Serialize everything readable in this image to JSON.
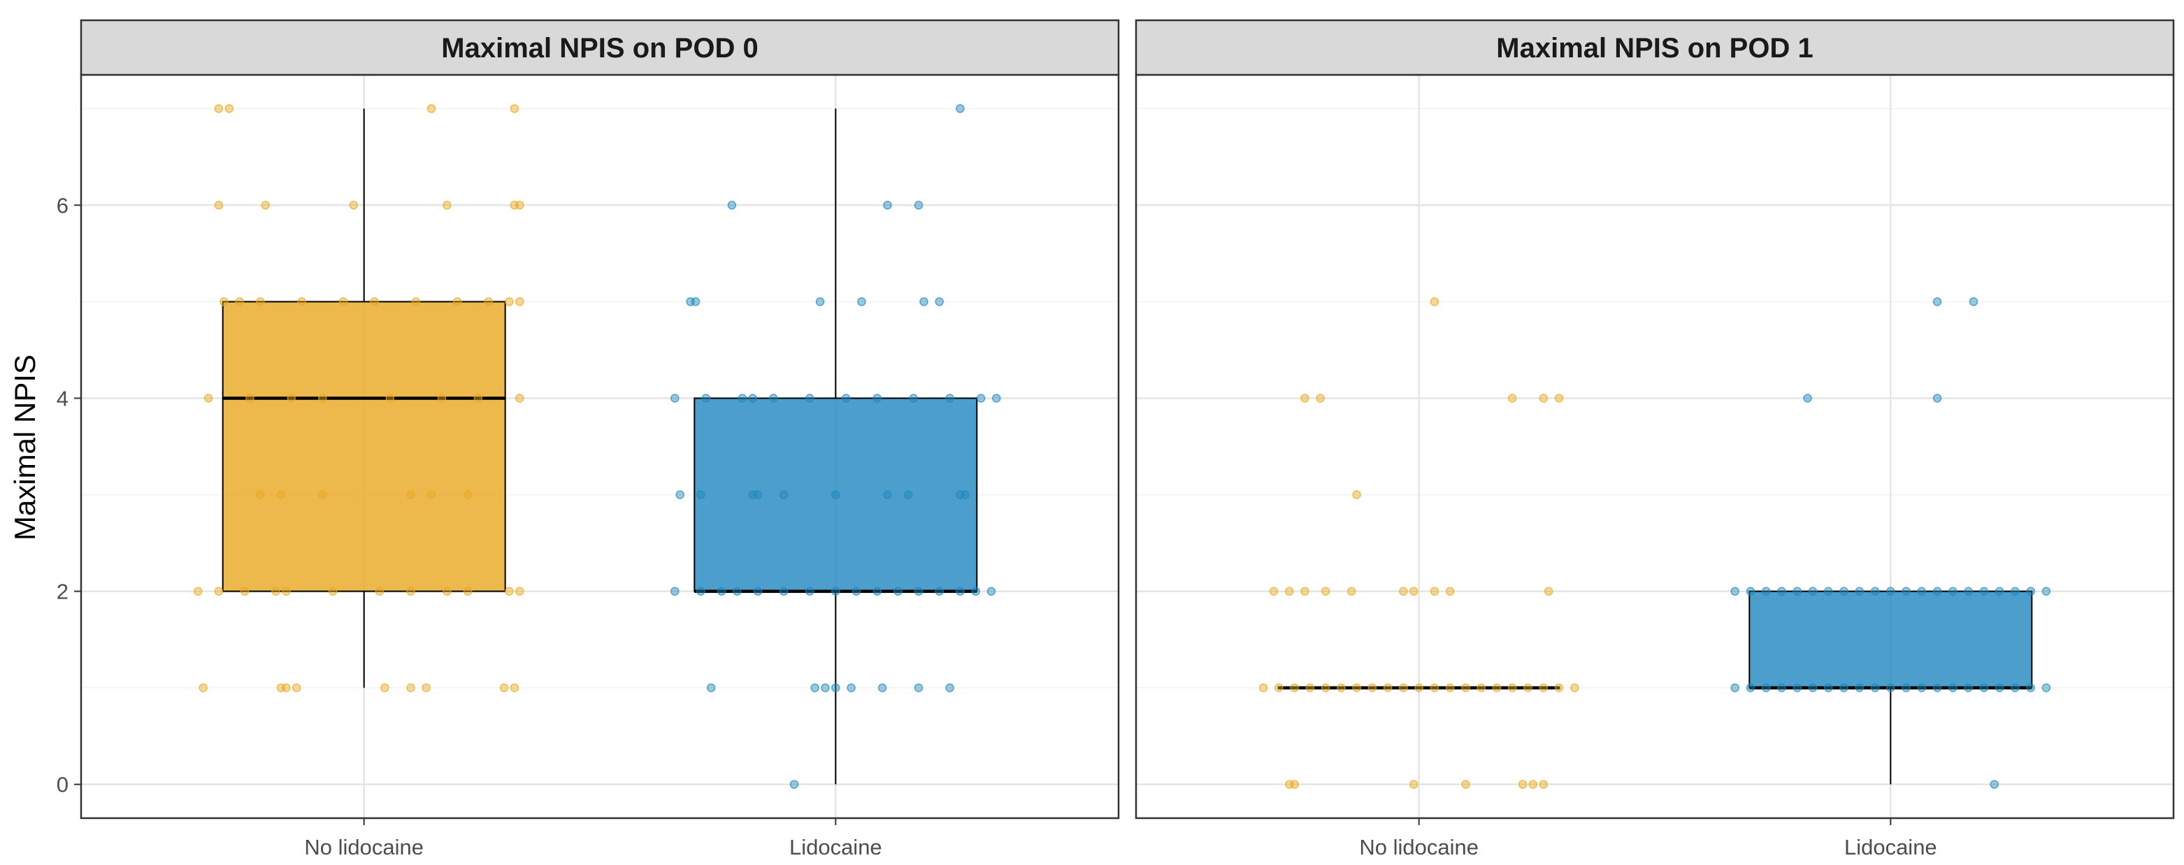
{
  "chart_data": {
    "type": "box",
    "ylabel": "Maximal NPIS",
    "xlabel": "",
    "ylim": [
      -0.35,
      7.35
    ],
    "yticks": [
      0,
      2,
      4,
      6
    ],
    "categories": [
      "No lidocaine",
      "Lidocaine"
    ],
    "colors": {
      "No lidocaine": "#E9A820",
      "Lidocaine": "#1F87BF"
    },
    "grid": true,
    "legend": "none",
    "panels": [
      {
        "title": "Maximal NPIS on POD 0",
        "boxes": [
          {
            "category": "No lidocaine",
            "min": 1,
            "q1": 2,
            "median": 4,
            "q3": 5,
            "max": 7
          },
          {
            "category": "Lidocaine",
            "min": 0,
            "q1": 2,
            "median": 2,
            "q3": 4,
            "max": 7
          }
        ],
        "points": {
          "No lidocaine": [
            [
              7,
              -0.28
            ],
            [
              7,
              -0.26
            ],
            [
              7,
              0.13
            ],
            [
              7,
              0.29
            ],
            [
              6,
              -0.28
            ],
            [
              6,
              -0.19
            ],
            [
              6,
              -0.02
            ],
            [
              6,
              0.16
            ],
            [
              6,
              0.29
            ],
            [
              6,
              0.3
            ],
            [
              5,
              -0.27
            ],
            [
              5,
              -0.24
            ],
            [
              5,
              -0.2
            ],
            [
              5,
              -0.12
            ],
            [
              5,
              -0.04
            ],
            [
              5,
              0.02
            ],
            [
              5,
              0.1
            ],
            [
              5,
              0.18
            ],
            [
              5,
              0.24
            ],
            [
              5,
              0.28
            ],
            [
              5,
              0.3
            ],
            [
              4,
              -0.3
            ],
            [
              4,
              -0.22
            ],
            [
              4,
              -0.14
            ],
            [
              4,
              -0.08
            ],
            [
              4,
              0.05
            ],
            [
              4,
              0.15
            ],
            [
              4,
              0.22
            ],
            [
              4,
              0.3
            ],
            [
              3,
              -0.2
            ],
            [
              3,
              -0.16
            ],
            [
              3,
              -0.08
            ],
            [
              3,
              0.09
            ],
            [
              3,
              0.13
            ],
            [
              3,
              0.2
            ],
            [
              2,
              -0.32
            ],
            [
              2,
              -0.28
            ],
            [
              2,
              -0.23
            ],
            [
              2,
              -0.17
            ],
            [
              2,
              -0.15
            ],
            [
              2,
              -0.06
            ],
            [
              2,
              0.03
            ],
            [
              2,
              0.09
            ],
            [
              2,
              0.16
            ],
            [
              2,
              0.2
            ],
            [
              2,
              0.28
            ],
            [
              2,
              0.3
            ],
            [
              1,
              -0.31
            ],
            [
              1,
              -0.16
            ],
            [
              1,
              -0.15
            ],
            [
              1,
              -0.13
            ],
            [
              1,
              0.04
            ],
            [
              1,
              0.09
            ],
            [
              1,
              0.12
            ],
            [
              1,
              0.27
            ],
            [
              1,
              0.29
            ]
          ],
          "Lidocaine": [
            [
              7,
              0.24
            ],
            [
              6,
              -0.2
            ],
            [
              6,
              0.1
            ],
            [
              6,
              0.16
            ],
            [
              5,
              -0.28
            ],
            [
              5,
              -0.27
            ],
            [
              5,
              -0.03
            ],
            [
              5,
              0.05
            ],
            [
              5,
              0.17
            ],
            [
              5,
              0.2
            ],
            [
              4,
              -0.31
            ],
            [
              4,
              -0.25
            ],
            [
              4,
              -0.18
            ],
            [
              4,
              -0.16
            ],
            [
              4,
              -0.12
            ],
            [
              4,
              -0.05
            ],
            [
              4,
              0.02
            ],
            [
              4,
              0.08
            ],
            [
              4,
              0.15
            ],
            [
              4,
              0.22
            ],
            [
              4,
              0.28
            ],
            [
              4,
              0.31
            ],
            [
              3,
              -0.3
            ],
            [
              3,
              -0.26
            ],
            [
              3,
              -0.16
            ],
            [
              3,
              -0.15
            ],
            [
              3,
              -0.1
            ],
            [
              3,
              0
            ],
            [
              3,
              0.1
            ],
            [
              3,
              0.14
            ],
            [
              3,
              0.24
            ],
            [
              3,
              0.25
            ],
            [
              2,
              -0.31
            ],
            [
              2,
              -0.26
            ],
            [
              2,
              -0.22
            ],
            [
              2,
              -0.19
            ],
            [
              2,
              -0.15
            ],
            [
              2,
              -0.1
            ],
            [
              2,
              -0.05
            ],
            [
              2,
              0
            ],
            [
              2,
              0.04
            ],
            [
              2,
              0.08
            ],
            [
              2,
              0.12
            ],
            [
              2,
              0.16
            ],
            [
              2,
              0.2
            ],
            [
              2,
              0.24
            ],
            [
              2,
              0.27
            ],
            [
              2,
              0.3
            ],
            [
              1,
              -0.24
            ],
            [
              1,
              -0.04
            ],
            [
              1,
              -0.02
            ],
            [
              1,
              0
            ],
            [
              1,
              0.03
            ],
            [
              1,
              0.09
            ],
            [
              1,
              0.16
            ],
            [
              1,
              0.22
            ],
            [
              0,
              -0.08
            ]
          ]
        }
      },
      {
        "title": "Maximal NPIS on POD 1",
        "boxes": [
          {
            "category": "No lidocaine",
            "min": 1,
            "q1": 1,
            "median": 1,
            "q3": 1,
            "max": 1
          },
          {
            "category": "Lidocaine",
            "min": 0,
            "q1": 1,
            "median": 1,
            "q3": 2,
            "max": 2
          }
        ],
        "points": {
          "No lidocaine": [
            [
              5,
              0.03
            ],
            [
              4,
              -0.22
            ],
            [
              4,
              -0.19
            ],
            [
              4,
              0.18
            ],
            [
              4,
              0.24
            ],
            [
              4,
              0.27
            ],
            [
              3,
              -0.12
            ],
            [
              2,
              -0.28
            ],
            [
              2,
              -0.25
            ],
            [
              2,
              -0.22
            ],
            [
              2,
              -0.18
            ],
            [
              2,
              -0.13
            ],
            [
              2,
              -0.03
            ],
            [
              2,
              -0.01
            ],
            [
              2,
              0.03
            ],
            [
              2,
              0.06
            ],
            [
              2,
              0.25
            ],
            [
              1,
              -0.3
            ],
            [
              1,
              -0.27
            ],
            [
              1,
              -0.24
            ],
            [
              1,
              -0.21
            ],
            [
              1,
              -0.18
            ],
            [
              1,
              -0.15
            ],
            [
              1,
              -0.12
            ],
            [
              1,
              -0.09
            ],
            [
              1,
              -0.06
            ],
            [
              1,
              -0.03
            ],
            [
              1,
              0
            ],
            [
              1,
              0.03
            ],
            [
              1,
              0.06
            ],
            [
              1,
              0.09
            ],
            [
              1,
              0.12
            ],
            [
              1,
              0.15
            ],
            [
              1,
              0.18
            ],
            [
              1,
              0.21
            ],
            [
              1,
              0.24
            ],
            [
              1,
              0.27
            ],
            [
              1,
              0.3
            ],
            [
              0,
              -0.25
            ],
            [
              0,
              -0.24
            ],
            [
              0,
              -0.01
            ],
            [
              0,
              0.09
            ],
            [
              0,
              0.2
            ],
            [
              0,
              0.22
            ],
            [
              0,
              0.24
            ]
          ],
          "Lidocaine": [
            [
              5,
              0.09
            ],
            [
              5,
              0.16
            ],
            [
              4,
              -0.16
            ],
            [
              4,
              0.09
            ],
            [
              2,
              -0.3
            ],
            [
              2,
              -0.27
            ],
            [
              2,
              -0.24
            ],
            [
              2,
              -0.21
            ],
            [
              2,
              -0.18
            ],
            [
              2,
              -0.15
            ],
            [
              2,
              -0.12
            ],
            [
              2,
              -0.09
            ],
            [
              2,
              -0.06
            ],
            [
              2,
              -0.03
            ],
            [
              2,
              0
            ],
            [
              2,
              0.03
            ],
            [
              2,
              0.06
            ],
            [
              2,
              0.09
            ],
            [
              2,
              0.12
            ],
            [
              2,
              0.15
            ],
            [
              2,
              0.18
            ],
            [
              2,
              0.21
            ],
            [
              2,
              0.24
            ],
            [
              2,
              0.27
            ],
            [
              2,
              0.3
            ],
            [
              1,
              -0.3
            ],
            [
              1,
              -0.27
            ],
            [
              1,
              -0.24
            ],
            [
              1,
              -0.21
            ],
            [
              1,
              -0.18
            ],
            [
              1,
              -0.15
            ],
            [
              1,
              -0.12
            ],
            [
              1,
              -0.09
            ],
            [
              1,
              -0.06
            ],
            [
              1,
              -0.03
            ],
            [
              1,
              0
            ],
            [
              1,
              0.03
            ],
            [
              1,
              0.06
            ],
            [
              1,
              0.09
            ],
            [
              1,
              0.12
            ],
            [
              1,
              0.15
            ],
            [
              1,
              0.18
            ],
            [
              1,
              0.21
            ],
            [
              1,
              0.24
            ],
            [
              1,
              0.27
            ],
            [
              1,
              0.3
            ],
            [
              0,
              0.2
            ]
          ]
        }
      }
    ]
  }
}
